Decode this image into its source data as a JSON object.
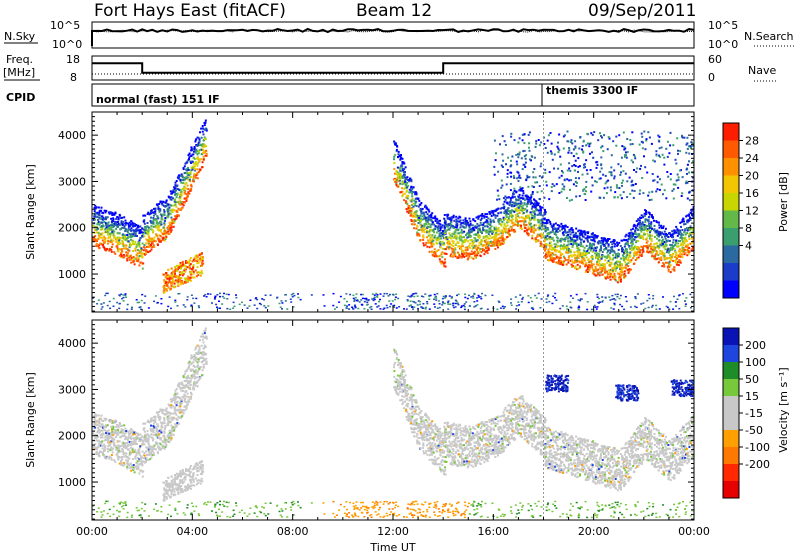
{
  "header": {
    "station": "Fort Hays East (fitACF)",
    "beam": "Beam 12",
    "date": "09/Sep/2011"
  },
  "top_panels": {
    "nsky_label": "N.Sky",
    "nsky_ticks": [
      "10^5",
      "10^0"
    ],
    "nsearch_label": "N.Search",
    "nsearch_ticks": [
      "10^5",
      "10^0"
    ],
    "freq_label": "Freq.",
    "freq_unit": "[MHz]",
    "freq_ticks": [
      "18",
      "8"
    ],
    "nave_label": "Nave",
    "nave_ticks": [
      "60",
      "0"
    ],
    "cpid_label": "CPID",
    "cpid_entries": [
      "normal (fast) 151 IF",
      "themis 3300 IF"
    ]
  },
  "panels": {
    "power_ylabel": "Slant Range [km]",
    "velocity_ylabel": "Slant Range [km]",
    "xlabel": "Time UT"
  },
  "chart_data": [
    {
      "type": "line",
      "name": "frequency",
      "ylabel": "Freq. [MHz]",
      "x_unit": "hours UT",
      "x": [
        0,
        2,
        2,
        14,
        14,
        24
      ],
      "values": [
        15,
        15,
        11,
        11,
        15,
        15
      ],
      "ylim": [
        8,
        18
      ]
    },
    {
      "type": "heatmap",
      "name": "power",
      "xlim": [
        0,
        24
      ],
      "ylim": [
        180,
        4500
      ],
      "x_ticks": [
        "00:00",
        "04:00",
        "08:00",
        "12:00",
        "16:00",
        "20:00",
        "00:00"
      ],
      "y_ticks": [
        "1000",
        "2000",
        "3000",
        "4000"
      ],
      "colorbar_label": "Power [dB]",
      "colorbar_ticks": [
        "28",
        "24",
        "20",
        "16",
        "12",
        "8",
        "4"
      ],
      "colorbar_colors": [
        "#ff1d00",
        "#ff5a00",
        "#ff9000",
        "#f2c600",
        "#c7d600",
        "#62b848",
        "#3a9e6e",
        "#2a6aa0",
        "#1a3cc8",
        "#0000ff"
      ],
      "echo_bands": [
        {
          "t": [
            0,
            1.0,
            2.0
          ],
          "range": [
            1700,
            1500,
            1200
          ]
        },
        {
          "t": [
            2.0,
            3.0,
            4.5
          ],
          "range": [
            1500,
            1900,
            3600
          ]
        },
        {
          "t": [
            12.0,
            13.0,
            14.0
          ],
          "range": [
            3100,
            1800,
            1250
          ]
        },
        {
          "t": [
            14.0,
            15.0,
            16.0,
            17.0,
            18.0
          ],
          "range": [
            1500,
            1400,
            1600,
            2100,
            1600
          ]
        },
        {
          "t": [
            18.0,
            19.5,
            21.0,
            22.0,
            23.0,
            24.0
          ],
          "range": [
            1400,
            1150,
            900,
            1600,
            1100,
            1700
          ]
        }
      ]
    },
    {
      "type": "heatmap",
      "name": "velocity",
      "xlim": [
        0,
        24
      ],
      "ylim": [
        180,
        4500
      ],
      "x_ticks": [
        "00:00",
        "04:00",
        "08:00",
        "12:00",
        "16:00",
        "20:00",
        "00:00"
      ],
      "y_ticks": [
        "1000",
        "2000",
        "3000",
        "4000"
      ],
      "colorbar_label": "Velocity [m s⁻¹]",
      "colorbar_ticks": [
        "200",
        "100",
        "50",
        "15",
        "-15",
        "-50",
        "-100",
        "-200"
      ],
      "colorbar_colors": [
        "#0a14b4",
        "#1e46dc",
        "#1e8c28",
        "#78c83c",
        "#c8c8c8",
        "#c8c8c8",
        "#ffa000",
        "#ff7800",
        "#ff2800",
        "#e60000"
      ]
    }
  ]
}
